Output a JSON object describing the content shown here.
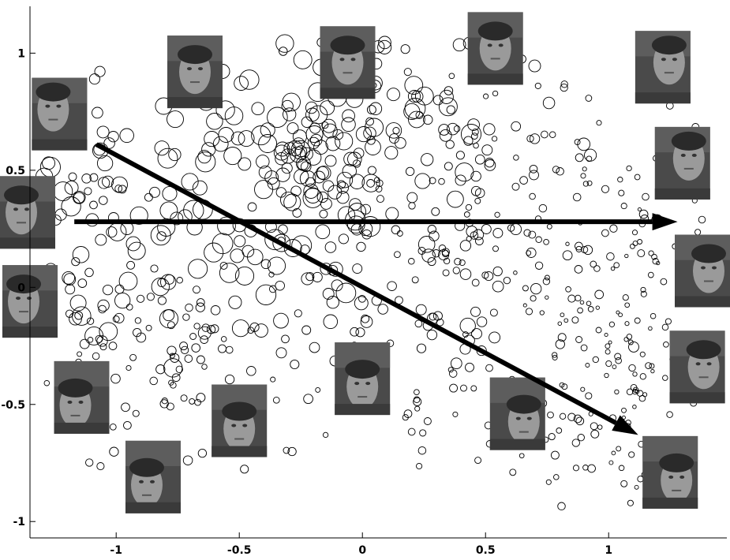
{
  "chart_data": {
    "type": "scatter",
    "title": "",
    "xlabel": "",
    "ylabel": "",
    "xlim": [
      -1.35,
      1.48
    ],
    "ylim": [
      -1.07,
      1.2
    ],
    "grid": false,
    "x_ticks": [
      -1,
      -0.5,
      0,
      0.5,
      1
    ],
    "x_tick_labels": [
      "-1",
      "-0.5",
      "0",
      "0.5",
      "1"
    ],
    "y_ticks": [
      -1,
      -0.5,
      0,
      0.5,
      1
    ],
    "y_tick_labels": [
      "-1",
      "-0.5",
      "0",
      "0.5",
      "1"
    ],
    "marker": "circle (open), size varies",
    "colors": {
      "marker": "#000000",
      "arrow": "#000000",
      "background": "#ffffff"
    },
    "arrows": [
      {
        "from": [
          -1.17,
          0.28
        ],
        "to": [
          1.28,
          0.28
        ]
      },
      {
        "from": [
          -1.08,
          0.61
        ],
        "to": [
          1.12,
          -0.63
        ]
      }
    ],
    "face_thumbnails": [
      {
        "x": -1.23,
        "y": 0.74,
        "pose": "face left, tilted up"
      },
      {
        "x": -0.68,
        "y": 0.92,
        "pose": "frontal"
      },
      {
        "x": -0.06,
        "y": 0.96,
        "pose": "frontal"
      },
      {
        "x": 0.54,
        "y": 1.02,
        "pose": "frontal"
      },
      {
        "x": 1.22,
        "y": 0.94,
        "pose": "face right, looking up"
      },
      {
        "x": 1.3,
        "y": 0.53,
        "pose": "face right, looking up"
      },
      {
        "x": -1.4,
        "y": 0.32,
        "pose": "left profile"
      },
      {
        "x": -1.35,
        "y": -0.06,
        "pose": "left profile"
      },
      {
        "x": 1.42,
        "y": 0.07,
        "pose": "right profile"
      },
      {
        "x": 1.36,
        "y": -0.34,
        "pose": "right profile"
      },
      {
        "x": -1.14,
        "y": -0.47,
        "pose": "head down, left"
      },
      {
        "x": -0.85,
        "y": -0.81,
        "pose": "head down, left"
      },
      {
        "x": -0.5,
        "y": -0.57,
        "pose": "head down"
      },
      {
        "x": 0.0,
        "y": -0.39,
        "pose": "head down"
      },
      {
        "x": 0.63,
        "y": -0.54,
        "pose": "head down, right"
      },
      {
        "x": 1.25,
        "y": -0.79,
        "pose": "head down, right"
      }
    ]
  }
}
